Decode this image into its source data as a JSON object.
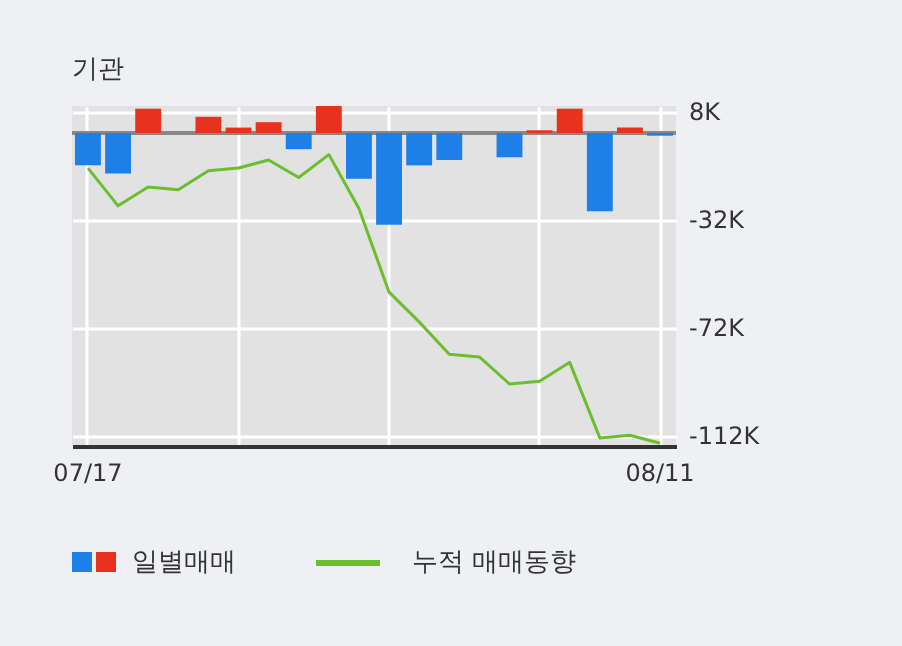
{
  "chart_data": {
    "type": "bar",
    "title": "기관",
    "categories": [
      "07/17",
      null,
      null,
      null,
      null,
      null,
      null,
      null,
      null,
      null,
      null,
      null,
      null,
      null,
      null,
      null,
      null,
      null,
      null,
      "08/11"
    ],
    "series": [
      {
        "name": "일별매매",
        "colors": [
          "#1e7fe8",
          "#1e7fe8",
          "#e8321e",
          "#e8321e",
          "#e8321e",
          "#e8321e",
          "#e8321e",
          "#1e7fe8",
          "#e8321e",
          "#1e7fe8",
          "#1e7fe8",
          "#1e7fe8",
          "#1e7fe8",
          "#1e7fe8",
          "#1e7fe8",
          "#e8321e",
          "#e8321e",
          "#1e7fe8",
          "#e8321e",
          "#1e7fe8"
        ],
        "values": [
          -12,
          -15,
          9,
          0,
          6,
          2,
          4,
          -6,
          10,
          -17,
          -34,
          -12,
          -10,
          0,
          -9,
          1,
          9,
          -29,
          2,
          -1
        ]
      },
      {
        "name": "누적 매매동향",
        "type": "line",
        "color": "#6bbf2f",
        "values": [
          -13,
          -27,
          -20,
          -21,
          -14,
          -13,
          -10,
          -16.5,
          -8,
          -28,
          -59,
          -70,
          -82,
          -83,
          -93,
          -92,
          -85,
          -113,
          -112,
          -115
        ]
      }
    ],
    "ylim": [
      -116,
      10
    ],
    "yticks": [
      {
        "value": 8,
        "label": "8K"
      },
      {
        "value": -32,
        "label": "-32K"
      },
      {
        "value": -72,
        "label": "-72K"
      },
      {
        "value": -112,
        "label": "-112K"
      }
    ],
    "ref_lines": [
      {
        "axis": "y",
        "value": 0,
        "color": "#888888"
      }
    ],
    "grid": true,
    "legend": "bottom"
  }
}
